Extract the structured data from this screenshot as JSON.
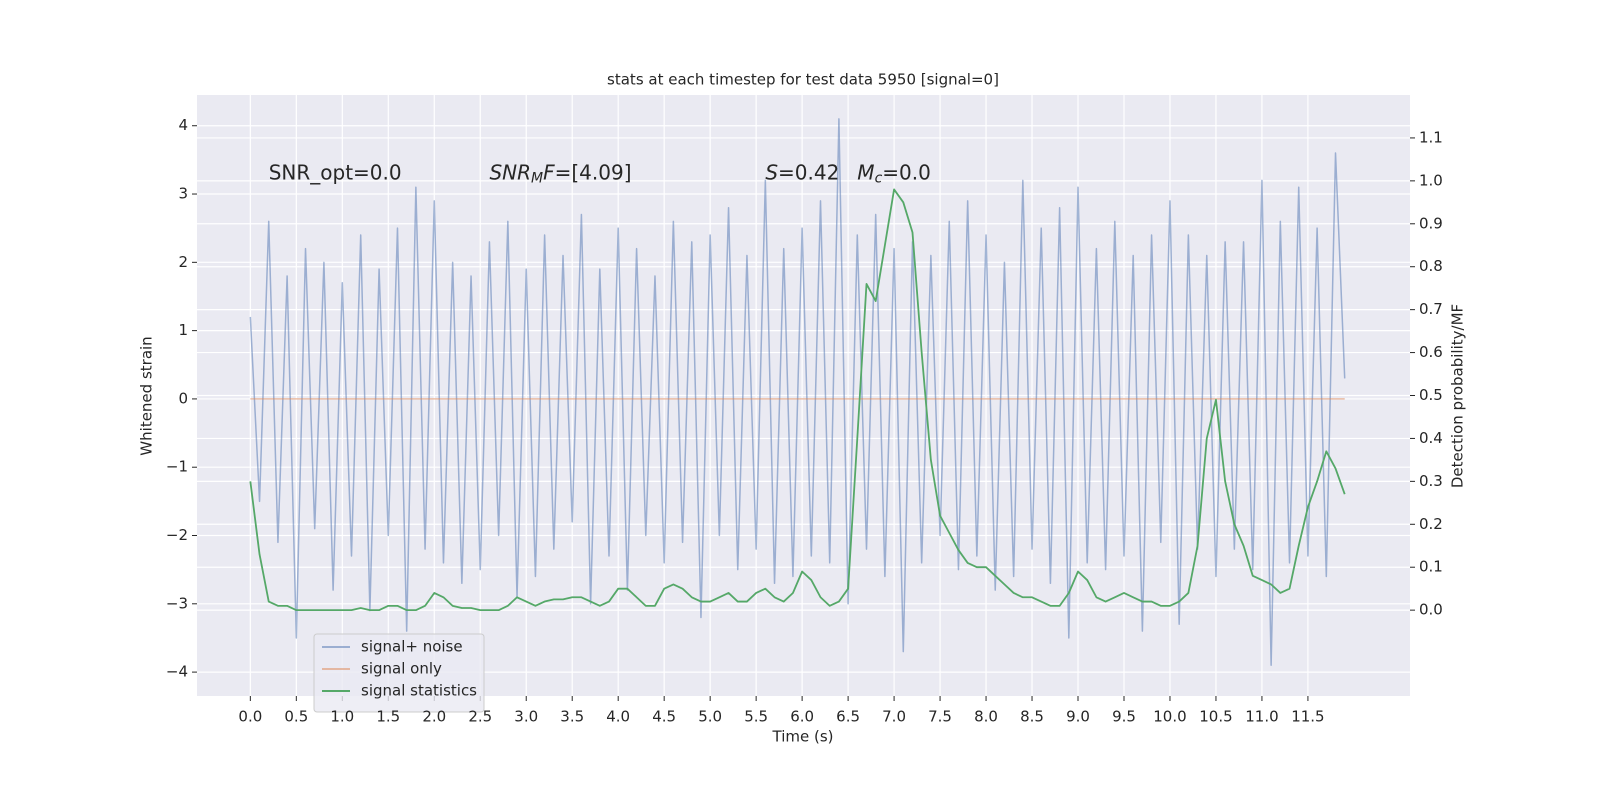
{
  "chart_data": {
    "type": "line",
    "title": "stats at each timestep for test data 5950 [signal=0]",
    "xlabel": "Time (s)",
    "ylabel": "Whitened strain",
    "y2label": "Detection probability/MF",
    "xlim": [
      -0.58,
      12.61
    ],
    "ylim": [
      -4.35,
      4.45
    ],
    "y2lim": [
      -0.2,
      1.2
    ],
    "grid": true,
    "legend": "lower left",
    "xticks": [
      {
        "value": 0,
        "label": "0.0"
      },
      0.5,
      {
        "value": 1,
        "label": "1.0"
      },
      1.5,
      {
        "value": 2,
        "label": "2.0"
      },
      2.5,
      {
        "value": 3,
        "label": "3.0"
      },
      3.5,
      {
        "value": 4,
        "label": "4.0"
      },
      4.5,
      {
        "value": 5,
        "label": "5.0"
      },
      5.5,
      {
        "value": 6,
        "label": "6.0"
      },
      6.5,
      {
        "value": 7,
        "label": "7.0"
      },
      7.5,
      {
        "value": 8,
        "label": "8.0"
      },
      8.5,
      {
        "value": 9,
        "label": "9.0"
      },
      9.5,
      {
        "value": 10,
        "label": "10.0"
      },
      10.5,
      {
        "value": 11,
        "label": "11.0"
      },
      11.5
    ],
    "yticks": [
      {
        "value": -4,
        "label": "−4"
      },
      {
        "value": -3,
        "label": "−3"
      },
      {
        "value": -2,
        "label": "−2"
      },
      {
        "value": -1,
        "label": "−1"
      },
      0,
      1,
      2,
      3,
      4
    ],
    "y2ticks": [
      {
        "value": 0,
        "label": "0.0"
      },
      0.1,
      0.2,
      0.3,
      0.4,
      0.5,
      0.6,
      0.7,
      0.8,
      0.9,
      {
        "value": 1,
        "label": "1.0"
      },
      1.1
    ],
    "annotations": [
      {
        "x": 0.2,
        "y": 3.3,
        "parts": [
          {
            "text": "SNR_opt=0.0"
          }
        ]
      },
      {
        "x": 2.6,
        "y": 3.3,
        "parts": [
          {
            "text": "SNR",
            "italic": true
          },
          {
            "text": "M",
            "italic": true,
            "sub": true
          },
          {
            "text": "F",
            "italic": true
          },
          {
            "text": "=[4.09]"
          }
        ]
      },
      {
        "x": 5.6,
        "y": 3.3,
        "parts": [
          {
            "text": "S",
            "italic": true
          },
          {
            "text": "=0.42"
          }
        ]
      },
      {
        "x": 6.6,
        "y": 3.3,
        "parts": [
          {
            "text": "M",
            "italic": true
          },
          {
            "text": "c",
            "italic": true,
            "sub": true
          },
          {
            "text": "=0.0"
          }
        ]
      }
    ],
    "x": [
      0,
      0.1,
      0.2,
      0.3,
      0.4,
      0.5,
      0.6,
      0.7,
      0.8,
      0.9,
      1,
      1.1,
      1.2,
      1.3,
      1.4,
      1.5,
      1.6,
      1.7,
      1.8,
      1.9,
      2,
      2.1,
      2.2,
      2.3,
      2.4,
      2.5,
      2.6,
      2.7,
      2.8,
      2.9,
      3,
      3.1,
      3.2,
      3.3,
      3.4,
      3.5,
      3.6,
      3.7,
      3.8,
      3.9,
      4,
      4.1,
      4.2,
      4.3,
      4.4,
      4.5,
      4.6,
      4.7,
      4.8,
      4.9,
      5,
      5.1,
      5.2,
      5.3,
      5.4,
      5.5,
      5.6,
      5.7,
      5.8,
      5.9,
      6,
      6.1,
      6.2,
      6.3,
      6.4,
      6.5,
      6.6,
      6.7,
      6.8,
      6.9,
      7,
      7.1,
      7.2,
      7.3,
      7.4,
      7.5,
      7.6,
      7.7,
      7.8,
      7.9,
      8,
      8.1,
      8.2,
      8.3,
      8.4,
      8.5,
      8.6,
      8.7,
      8.8,
      8.9,
      9,
      9.1,
      9.2,
      9.3,
      9.4,
      9.5,
      9.6,
      9.7,
      9.8,
      9.9,
      10,
      10.1,
      10.2,
      10.3,
      10.4,
      10.5,
      10.6,
      10.7,
      10.8,
      10.9,
      11,
      11.1,
      11.2,
      11.3,
      11.4,
      11.5,
      11.6,
      11.7,
      11.8,
      11.9
    ],
    "series": [
      {
        "name": "signal+ noise",
        "color": "#4c72b0",
        "opacity": 0.5,
        "values": [
          1.2,
          -1.5,
          2.6,
          -2.1,
          1.8,
          -3.5,
          2.2,
          -1.9,
          2.0,
          -2.8,
          1.7,
          -2.3,
          2.4,
          -3.1,
          1.9,
          -2.0,
          2.5,
          -3.4,
          3.1,
          -2.2,
          2.9,
          -2.4,
          2.0,
          -2.7,
          1.8,
          -2.5,
          2.3,
          -2.0,
          2.6,
          -2.9,
          1.9,
          -2.6,
          2.4,
          -2.2,
          2.1,
          -1.8,
          2.7,
          -3.0,
          1.9,
          -2.3,
          2.5,
          -2.8,
          2.2,
          -2.0,
          1.8,
          -2.4,
          2.6,
          -2.1,
          2.3,
          -3.2,
          2.4,
          -2.0,
          2.8,
          -2.5,
          2.1,
          -2.2,
          3.2,
          -2.7,
          2.2,
          -2.6,
          2.5,
          -2.3,
          2.9,
          -2.4,
          4.1,
          -3.0,
          2.4,
          -2.2,
          2.7,
          -2.6,
          2.2,
          -3.7,
          2.3,
          -2.4,
          2.1,
          -2.0,
          2.6,
          -2.5,
          2.9,
          -2.3,
          2.4,
          -2.8,
          2.0,
          -2.6,
          3.2,
          -2.2,
          2.5,
          -2.7,
          2.8,
          -3.5,
          3.1,
          -2.4,
          2.2,
          -2.5,
          2.6,
          -2.3,
          2.1,
          -3.4,
          2.4,
          -2.1,
          2.9,
          -3.3,
          2.4,
          -2.2,
          2.1,
          -2.6,
          2.3,
          -2.2,
          2.3,
          -2.5,
          3.2,
          -3.9,
          2.6,
          -2.4,
          3.1,
          -2.3,
          2.5,
          -2.6,
          3.6,
          0.3
        ]
      },
      {
        "name": "signal only",
        "color": "#dd8452",
        "opacity": 0.5,
        "values": [
          0,
          0,
          0,
          0,
          0,
          0,
          0,
          0,
          0,
          0,
          0,
          0,
          0,
          0,
          0,
          0,
          0,
          0,
          0,
          0,
          0,
          0,
          0,
          0,
          0,
          0,
          0,
          0,
          0,
          0,
          0,
          0,
          0,
          0,
          0,
          0,
          0,
          0,
          0,
          0,
          0,
          0,
          0,
          0,
          0,
          0,
          0,
          0,
          0,
          0,
          0,
          0,
          0,
          0,
          0,
          0,
          0,
          0,
          0,
          0,
          0,
          0,
          0,
          0,
          0,
          0,
          0,
          0,
          0,
          0,
          0,
          0,
          0,
          0,
          0,
          0,
          0,
          0,
          0,
          0,
          0,
          0,
          0,
          0,
          0,
          0,
          0,
          0,
          0,
          0,
          0,
          0,
          0,
          0,
          0,
          0,
          0,
          0,
          0,
          0,
          0,
          0,
          0,
          0,
          0,
          0,
          0,
          0,
          0,
          0,
          0,
          0,
          0,
          0,
          0,
          0,
          0,
          0,
          0,
          0
        ]
      },
      {
        "name": "signal statistics",
        "color": "#55a868",
        "opacity": 1,
        "axis": "y2",
        "values": [
          0.3,
          0.13,
          0.02,
          0.01,
          0.01,
          0,
          0,
          0,
          0,
          0,
          0,
          0,
          0.005,
          0,
          0,
          0.01,
          0.01,
          0,
          0,
          0.01,
          0.04,
          0.03,
          0.01,
          0.005,
          0.005,
          0,
          0,
          0,
          0.01,
          0.03,
          0.02,
          0.01,
          0.02,
          0.025,
          0.025,
          0.03,
          0.03,
          0.02,
          0.01,
          0.02,
          0.05,
          0.05,
          0.03,
          0.01,
          0.01,
          0.05,
          0.06,
          0.05,
          0.03,
          0.02,
          0.02,
          0.03,
          0.04,
          0.02,
          0.02,
          0.04,
          0.05,
          0.03,
          0.02,
          0.04,
          0.09,
          0.07,
          0.03,
          0.01,
          0.02,
          0.05,
          0.4,
          0.76,
          0.72,
          0.85,
          0.98,
          0.95,
          0.88,
          0.6,
          0.35,
          0.22,
          0.18,
          0.14,
          0.11,
          0.1,
          0.1,
          0.08,
          0.06,
          0.04,
          0.03,
          0.03,
          0.02,
          0.01,
          0.01,
          0.04,
          0.09,
          0.07,
          0.03,
          0.02,
          0.03,
          0.04,
          0.03,
          0.02,
          0.02,
          0.01,
          0.01,
          0.02,
          0.04,
          0.15,
          0.4,
          0.49,
          0.3,
          0.2,
          0.15,
          0.08,
          0.07,
          0.06,
          0.04,
          0.05,
          0.15,
          0.24,
          0.3,
          0.37,
          0.33,
          0.27
        ]
      }
    ]
  }
}
